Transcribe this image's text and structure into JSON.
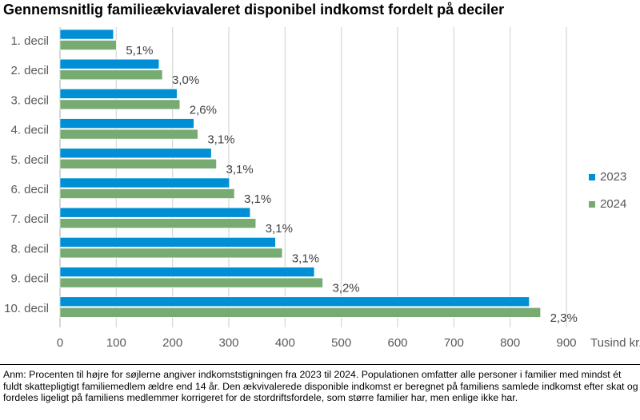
{
  "chart_data": {
    "type": "bar",
    "orientation": "horizontal",
    "title": "Gennemsnitlig familieækviavaleret disponibel indkomst fordelt på deciler",
    "categories": [
      "1. decil",
      "2. decil",
      "3. decil",
      "4. decil",
      "5. decil",
      "6. decil",
      "7. decil",
      "8. decil",
      "9. decil",
      "10. decil"
    ],
    "series": [
      {
        "name": "2023",
        "color": "#008FD5",
        "values": [
          95,
          176,
          208,
          238,
          269,
          301,
          338,
          383,
          452,
          834
        ]
      },
      {
        "name": "2024",
        "color": "#77AB72",
        "values": [
          100,
          182,
          213,
          245,
          278,
          310,
          348,
          395,
          467,
          854
        ]
      }
    ],
    "data_labels": [
      "5,1%",
      "3,0%",
      "2,6%",
      "3,1%",
      "3,1%",
      "3,1%",
      "3,1%",
      "3,1%",
      "3,2%",
      "2,3%"
    ],
    "xlabel": "Tusind kr.",
    "ylabel": "",
    "xlim": [
      0,
      900
    ],
    "xticks": [
      "0",
      "100",
      "200",
      "300",
      "400",
      "500",
      "600",
      "700",
      "800",
      "900"
    ],
    "grid": "vertical",
    "legend_position": "right"
  },
  "note": "Anm: Procenten til højre for søjlerne angiver indkomststigningen fra 2023 til 2024. Populationen omfatter alle personer i familier med mindst ét fuldt skattepligtigt familiemedlem ældre end 14 år. Den ækvivalerede disponible indkomst er beregnet på familiens samlede indkomst efter skat og fordeles ligeligt på familiens medlemmer korrigeret for de stordriftsfordele, som større familier har, men enlige ikke har."
}
